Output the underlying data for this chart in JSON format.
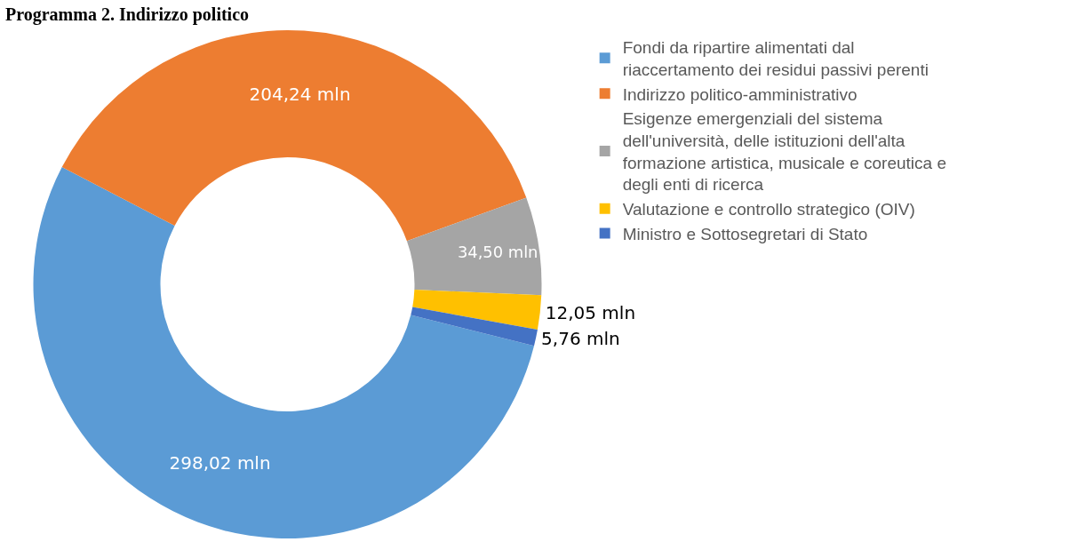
{
  "chart_data": {
    "type": "donut",
    "title": "Programma 2. Indirizzo politico",
    "categories": [
      "Fondi da ripartire alimentati dal riaccertamento dei residui passivi perenti",
      "Indirizzo politico-amministrativo",
      "Esigenze emergenziali del sistema dell'università, delle istituzioni dell'alta formazione artistica, musicale e coreutica e degli enti di ricerca",
      "Valutazione e controllo strategico (OIV)",
      "Ministro e Sottosegretari di Stato"
    ],
    "values": [
      298.02,
      204.24,
      34.5,
      12.05,
      5.76
    ],
    "colors": [
      "#5b9bd5",
      "#ed7d31",
      "#a5a5a5",
      "#ffc000",
      "#4472c4"
    ],
    "value_labels": [
      "298,02 mln",
      "204,24 mln",
      "34,50 mln",
      "12,05 mln",
      "5,76 mln"
    ],
    "legend": "right"
  }
}
